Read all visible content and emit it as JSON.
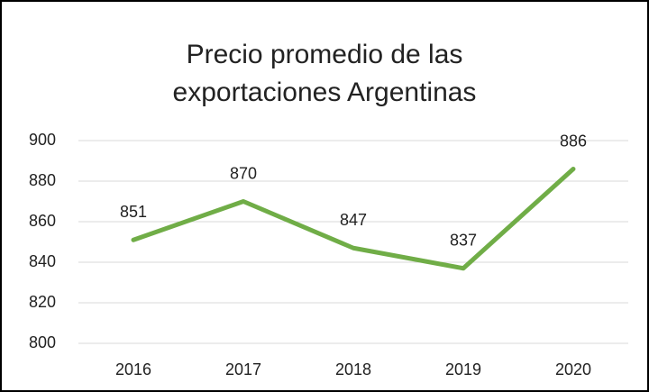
{
  "chart_data": {
    "type": "line",
    "title": "Precio promedio de las exportaciones Argentinas",
    "categories": [
      "2016",
      "2017",
      "2018",
      "2019",
      "2020"
    ],
    "values": [
      851,
      870,
      847,
      837,
      886
    ],
    "color": "#70ad47",
    "ylim": [
      800,
      900
    ],
    "yticks": [
      800,
      820,
      840,
      860,
      880,
      900
    ],
    "grid": true
  }
}
